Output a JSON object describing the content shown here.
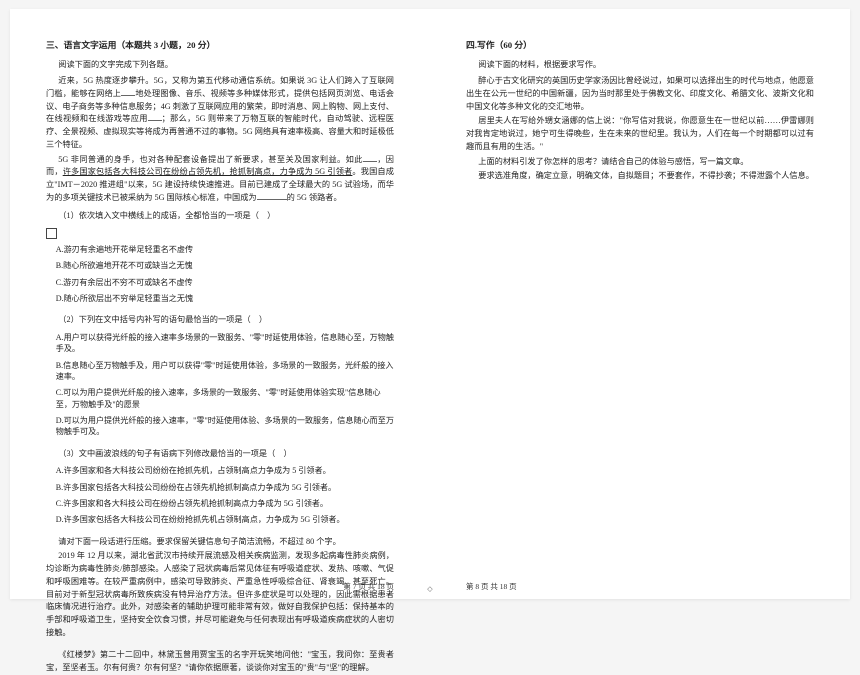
{
  "left": {
    "section_title": "三、语言文字运用（本题共 3 小题，20 分）",
    "intro": "阅读下面的文字完成下列各题。",
    "p1a": "近来，5G 热度逐步攀升。5G，又称为第五代移动通信系统。如果说 3G 让人们跨入了互联网门槛，能够在网络上",
    "p1b": "地处理图像、音乐、视频等多种媒体形式，提供包括网页浏览、电话会议、电子商务等多种信息服务；4G 刺激了互联网应用的繁荣，即时消息、网上购物、网上支付、在线视频和在线游戏等应用",
    "p1c": "；那么，5G 则带来了万物互联的智能时代，自动驾驶、远程医疗、全景视频、虚拟现实等将成为再普通不过的事物。5G 网络具有速率极高、容量大和时延极低三个特征。",
    "p2a": "5G 非同普通的身手，也对各种配套设备提出了新要求，甚至关及国家利益。如此",
    "p2b": "，因而，",
    "p2u": "许多国家包括各大科技公司在纷纷占领先机，抢抓制高点，力争成为 5G 引领者",
    "p2c": "。我国自成立\"IMT－2020 推进组\"以来，5G 建设持续快速推进。目前已建成了全球最大的 5G 试验场，而华为的多项关键技术已被采纳为 5G 国际核心标准，中国成为",
    "p2d": "的 5G 领路者。",
    "q1": "（1）依次填入文中横线上的成语，全都恰当的一项是（　）",
    "q1A": "A.游刃有余遍地开花举足轻重名不虚传",
    "q1B": "B.随心所欲遍地开花不可或缺当之无愧",
    "q1C": "C.游刃有余层出不穷不可或缺名不虚传",
    "q1D": "D.随心所欲层出不穷举足轻重当之无愧",
    "q2": "（2）下列在文中括号内补写的语句最恰当的一项是（　）",
    "q2A": "A.用户可以获得光纤般的接入速率多场景的一致服务、\"零\"时延使用体验，信息随心至，万物触手及。",
    "q2B": "B.信息随心至万物触手及，用户可以获得\"零\"时延使用体验，多场景的一致服务，光纤般的接入速率。",
    "q2C": "C.可以为用户提供光纤般的接入速率，多场景的一致服务、\"零\"时延使用体验实现\"信息随心至，万物触手及\"的愿景",
    "q2D": "D.可以为用户提供光纤般的接入速率，\"零\"时延使用体验、多场景的一致服务，信息随心而至万物触手可及。",
    "q3": "（3）文中画波浪线的句子有语病下列修改最恰当的一项是（　）",
    "q3A": "A.许多国家和各大科技公司纷纷在抢抓先机，占领制高点力争成为 5 引领者。",
    "q3B": "B.许多国家包括各大科技公司纷纷在占领先机抢抓制高点力争成为 5G 引领者。",
    "q3C": "C.许多国家和各大科技公司在纷纷占领先机抢抓制高点力争成为 5G 引领者。",
    "q3D": "D.许多国家包括各大科技公司在纷纷抢抓先机占领制高点，力争成为 5G 引领者。",
    "comp_intro": "请对下面一段话进行压缩。要求保留关键信息句子简洁流畅，不超过 80 个字。",
    "comp_para": "2019 年 12 月以来，湖北省武汉市持续开展流感及相关疾病监测，发现多起病毒性肺炎病例，均诊断为病毒性肺炎/肺部感染。人感染了冠状病毒后常见体征有呼吸道症状、发热、咳嗽、气促和呼吸困难等。在较严重病例中，感染可导致肺炎、严重急性呼吸综合征、肾衰竭、甚至死亡。目前对于新型冠状病毒所致疾病没有特异治疗方法。但许多症状是可以处理的，因此需根据患者临床情况进行治疗。此外，对感染者的辅助护理可能非常有效，做好自我保护包括：保持基本的手部和呼吸道卫生，坚持安全饮食习惯，并尽可能避免与任何表现出有呼吸道疾病症状的人密切接触。",
    "hlm": "《红楼梦》第二十二回中，林黛玉曾用贾宝玉的名字开玩笑地问他：\"宝玉，我问你：至贵者宝，至坚者玉。尔有何贵？尔有何坚？\"请你依据原著，谈谈你对宝玉的\"贵\"与\"坚\"的理解。",
    "footer": "第 7 页   共 18 页"
  },
  "right": {
    "section_title": "四.写作（60 分）",
    "intro": "阅读下面的材料，根据要求写作。",
    "p1": "醉心于古文化研究的英国历史学家汤因比曾经说过，如果可以选择出生的时代与地点，他愿意出生在公元一世纪的中国新疆，因为当时那里处于佛教文化、印度文化、希腊文化、波斯文化和中国文化等多种文化的交汇地带。",
    "p2": "居里夫人在写给外甥女涵娜的信上说：\"你写信对我说，你愿意生在一世纪以前……伊雷娜则对我肯定地说过，她宁可生得晚些，生在未来的世纪里。我认为，人们在每一个时期都可以过有趣而且有用的生活。\"",
    "p3": "上面的材料引发了你怎样的思考？请结合自己的体验与感悟，写一篇文章。",
    "p4": "要求选准角度，确定立意，明确文体，自拟题目；不要套作，不得抄袭；不得泄露个人信息。",
    "footer": "第 8 页   共 18 页"
  },
  "diamond": "◇"
}
